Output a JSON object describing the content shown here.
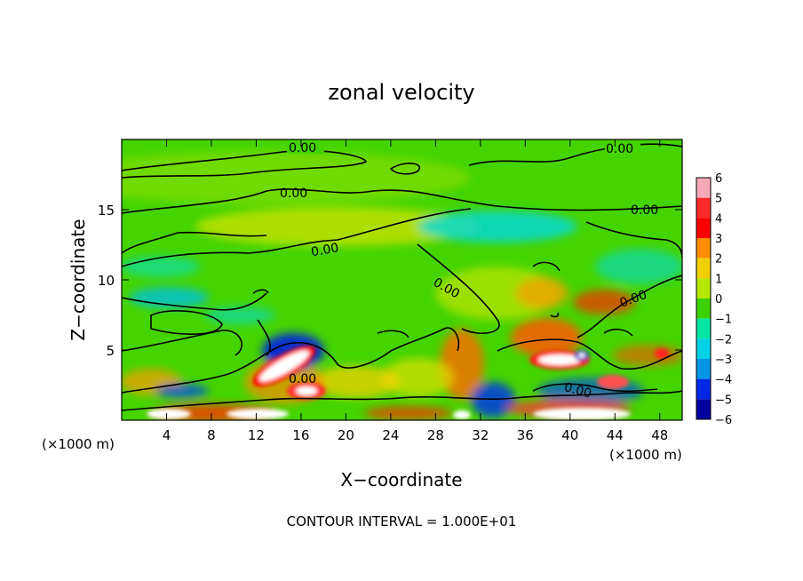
{
  "chart_data": {
    "type": "heatmap",
    "title": "zonal velocity",
    "xlabel": "X−coordinate",
    "ylabel": "Z−coordinate",
    "x_unit_label": "(×1000 m)",
    "x_unit_label_right": "(×1000 m)",
    "footer": "CONTOUR INTERVAL = 1.000E+01",
    "xlim": [
      0,
      50
    ],
    "ylim": [
      0,
      20
    ],
    "x_ticks": [
      "4",
      "8",
      "12",
      "16",
      "20",
      "24",
      "28",
      "32",
      "36",
      "40",
      "44",
      "48"
    ],
    "x_tick_values": [
      4,
      8,
      12,
      16,
      20,
      24,
      28,
      32,
      36,
      40,
      44,
      48
    ],
    "y_ticks": [
      "5",
      "10",
      "15"
    ],
    "y_tick_values": [
      5,
      10,
      15
    ],
    "colorbar": {
      "labels": [
        "6",
        "5",
        "4",
        "3",
        "2",
        "1",
        "0",
        "−1",
        "−2",
        "−3",
        "−4",
        "−5",
        "−6"
      ],
      "levels": [
        6,
        5,
        4,
        3,
        2,
        1,
        0,
        -1,
        -2,
        -3,
        -4,
        -5,
        -6
      ],
      "colors": [
        "#f7a8b8",
        "#ff2a2a",
        "#ff0000",
        "#ff8c00",
        "#f0d000",
        "#b4e600",
        "#3cd200",
        "#00e6a0",
        "#00d2e6",
        "#0096e6",
        "#0028e6",
        "#0000a0",
        "#6a00c8"
      ]
    },
    "contour_labels": [
      "0.00",
      "0.00",
      "0.00",
      "0.00",
      "0.00",
      "0.00",
      "0.00",
      "0.00",
      "0.00"
    ]
  }
}
